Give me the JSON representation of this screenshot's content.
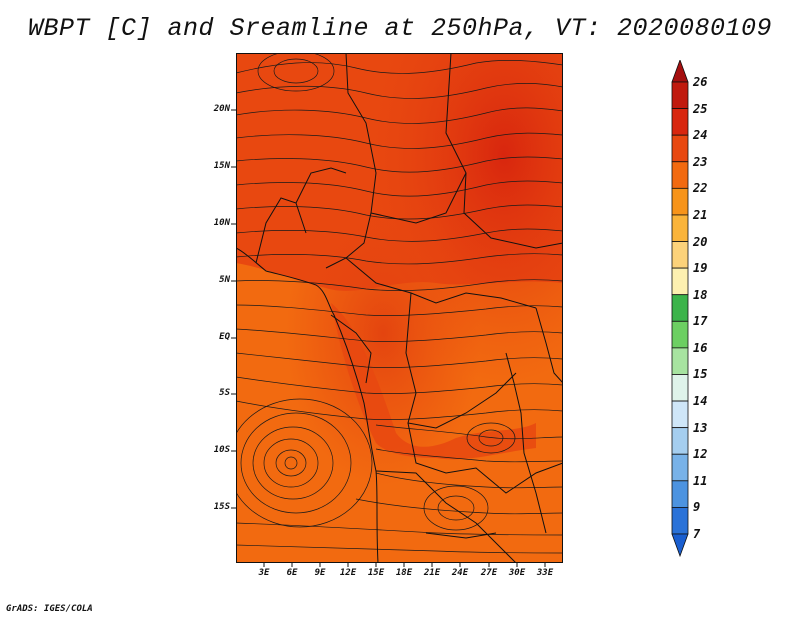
{
  "title": "WBPT [C] and Sreamline at 250hPa, VT: 2020080109",
  "footer": "GrADS: IGES/COLA",
  "map": {
    "variable": "WBPT [C]",
    "level": "250hPa",
    "valid_time": "2020080109",
    "lat_ticks": [
      "20N",
      "15N",
      "10N",
      "5N",
      "EQ",
      "5S",
      "10S",
      "15S"
    ],
    "lon_ticks": [
      "3E",
      "6E",
      "9E",
      "12E",
      "15E",
      "18E",
      "21E",
      "24E",
      "27E",
      "30E",
      "33E"
    ],
    "features": [
      "country-borders",
      "streamlines",
      "cyclonic-vortex-southwest"
    ]
  },
  "colorbar": {
    "labels": [
      "26",
      "25",
      "24",
      "23",
      "22",
      "21",
      "20",
      "19",
      "18",
      "17",
      "16",
      "15",
      "14",
      "13",
      "12",
      "11",
      "9",
      "7"
    ],
    "colors": [
      "#a50f0f",
      "#c01a0e",
      "#d8260e",
      "#e84810",
      "#f26a10",
      "#f7941a",
      "#fab43a",
      "#fcd27a",
      "#fdf0b0",
      "#3cb44b",
      "#6ccf62",
      "#a7e3a0",
      "#dff3ea",
      "#cfe6f8",
      "#a5ceef",
      "#78b2e8",
      "#4c93e0",
      "#2a72d8",
      "#1a5fd0"
    ]
  }
}
